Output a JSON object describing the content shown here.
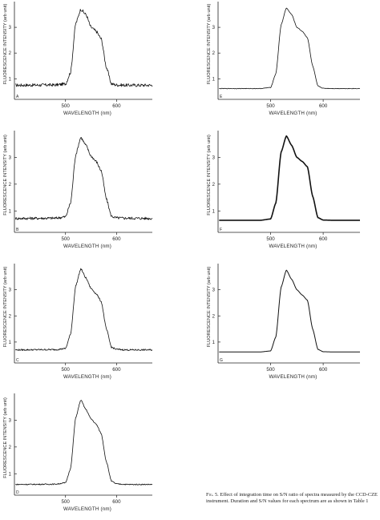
{
  "caption": {
    "label": "Fig. 5.",
    "text": "Effect of integration time on S/N ratio of spectra measured by the CCD-CZE instrument. Duration and S/N values for each spectrum are as shown in Table 1"
  },
  "chart_data": [
    {
      "type": "line",
      "panel": "A",
      "xlabel": "WAVELENGTH (nm)",
      "ylabel": "FLUORESCENCE INTENSITY (arb unit)",
      "xlim": [
        400,
        670
      ],
      "ylim": [
        0.2,
        4.0
      ],
      "xticks": [
        "500",
        "600"
      ],
      "yticks": [
        "1",
        "2",
        "3"
      ],
      "noise": 0.06,
      "series": [
        {
          "x": [
            400,
            480,
            500,
            510,
            520,
            530,
            540,
            550,
            560,
            570,
            580,
            590,
            600,
            620,
            670
          ],
          "y": [
            0.75,
            0.76,
            0.8,
            1.25,
            3.15,
            3.7,
            3.5,
            3.0,
            2.85,
            2.55,
            1.45,
            0.8,
            0.76,
            0.75,
            0.75
          ]
        }
      ]
    },
    {
      "type": "line",
      "panel": "B",
      "xlabel": "WAVELENGTH (nm)",
      "ylabel": "FLUORESCENCE INTENSITY (arb unit)",
      "xlim": [
        400,
        670
      ],
      "ylim": [
        0.2,
        4.0
      ],
      "xticks": [
        "500",
        "600"
      ],
      "yticks": [
        "1",
        "2",
        "3"
      ],
      "noise": 0.05,
      "series": [
        {
          "x": [
            400,
            480,
            500,
            510,
            520,
            530,
            540,
            550,
            560,
            570,
            580,
            590,
            600,
            620,
            670
          ],
          "y": [
            0.72,
            0.73,
            0.78,
            1.3,
            3.1,
            3.75,
            3.45,
            3.05,
            2.85,
            2.5,
            1.45,
            0.8,
            0.74,
            0.73,
            0.72
          ]
        }
      ]
    },
    {
      "type": "line",
      "panel": "C",
      "xlabel": "WAVELENGTH (nm)",
      "ylabel": "FLUORESCENCE INTENSITY (arb unit)",
      "xlim": [
        400,
        670
      ],
      "ylim": [
        0.2,
        4.0
      ],
      "xticks": [
        "500",
        "600"
      ],
      "yticks": [
        "1",
        "2",
        "3"
      ],
      "noise": 0.03,
      "series": [
        {
          "x": [
            400,
            480,
            500,
            510,
            520,
            530,
            540,
            550,
            560,
            570,
            580,
            590,
            600,
            620,
            670
          ],
          "y": [
            0.7,
            0.71,
            0.75,
            1.3,
            3.15,
            3.8,
            3.45,
            3.05,
            2.85,
            2.55,
            1.5,
            0.8,
            0.72,
            0.7,
            0.7
          ]
        }
      ]
    },
    {
      "type": "line",
      "panel": "D",
      "xlabel": "WAVELENGTH (nm)",
      "ylabel": "FLUORESCENCE INTENSITY (arb unit)",
      "xlim": [
        400,
        670
      ],
      "ylim": [
        0.2,
        4.0
      ],
      "xticks": [
        "500",
        "600"
      ],
      "yticks": [
        "1",
        "2",
        "3"
      ],
      "noise": 0.02,
      "series": [
        {
          "x": [
            400,
            480,
            500,
            510,
            520,
            530,
            540,
            550,
            560,
            570,
            580,
            590,
            600,
            620,
            670
          ],
          "y": [
            0.6,
            0.61,
            0.66,
            1.2,
            3.1,
            3.75,
            3.4,
            3.05,
            2.85,
            2.5,
            1.45,
            0.72,
            0.62,
            0.6,
            0.6
          ]
        }
      ]
    },
    {
      "type": "line",
      "panel": "E",
      "xlabel": "WAVELENGTH (nm)",
      "ylabel": "FLUORESCENCE INTENSITY (arb unit)",
      "xlim": [
        400,
        670
      ],
      "ylim": [
        0.2,
        4.0
      ],
      "xticks": [
        "500",
        "600"
      ],
      "yticks": [
        "1",
        "2",
        "3"
      ],
      "noise": 0.01,
      "series": [
        {
          "x": [
            400,
            480,
            500,
            510,
            520,
            530,
            540,
            550,
            560,
            570,
            580,
            590,
            600,
            620,
            670
          ],
          "y": [
            0.62,
            0.62,
            0.66,
            1.2,
            3.1,
            3.75,
            3.5,
            3.0,
            2.85,
            2.6,
            1.5,
            0.72,
            0.63,
            0.62,
            0.62
          ]
        }
      ]
    },
    {
      "type": "line",
      "panel": "F",
      "xlabel": "WAVELENGTH (nm)",
      "ylabel": "FLUORESCENCE INTENSITY (arb unit)",
      "xlim": [
        400,
        670
      ],
      "ylim": [
        0.2,
        4.0
      ],
      "xticks": [
        "500",
        "600"
      ],
      "yticks": [
        "1",
        "2",
        "3"
      ],
      "noise": 0.0,
      "series": [
        {
          "x": [
            400,
            480,
            500,
            510,
            520,
            530,
            540,
            550,
            560,
            570,
            580,
            590,
            600,
            620,
            670
          ],
          "y": [
            0.65,
            0.65,
            0.7,
            1.3,
            3.2,
            3.8,
            3.45,
            3.0,
            2.85,
            2.65,
            1.55,
            0.75,
            0.66,
            0.65,
            0.65
          ]
        }
      ]
    },
    {
      "type": "line",
      "panel": "G",
      "xlabel": "WAVELENGTH (nm)",
      "ylabel": "FLUORESCENCE INTENSITY (arb unit)",
      "xlim": [
        400,
        670
      ],
      "ylim": [
        0.2,
        4.0
      ],
      "xticks": [
        "500",
        "600"
      ],
      "yticks": [
        "1",
        "2",
        "3"
      ],
      "noise": 0.0,
      "series": [
        {
          "x": [
            400,
            480,
            500,
            510,
            520,
            530,
            540,
            550,
            560,
            570,
            580,
            590,
            600,
            620,
            670
          ],
          "y": [
            0.62,
            0.62,
            0.66,
            1.2,
            3.1,
            3.75,
            3.4,
            3.0,
            2.8,
            2.6,
            1.5,
            0.72,
            0.63,
            0.62,
            0.62
          ]
        }
      ]
    }
  ]
}
